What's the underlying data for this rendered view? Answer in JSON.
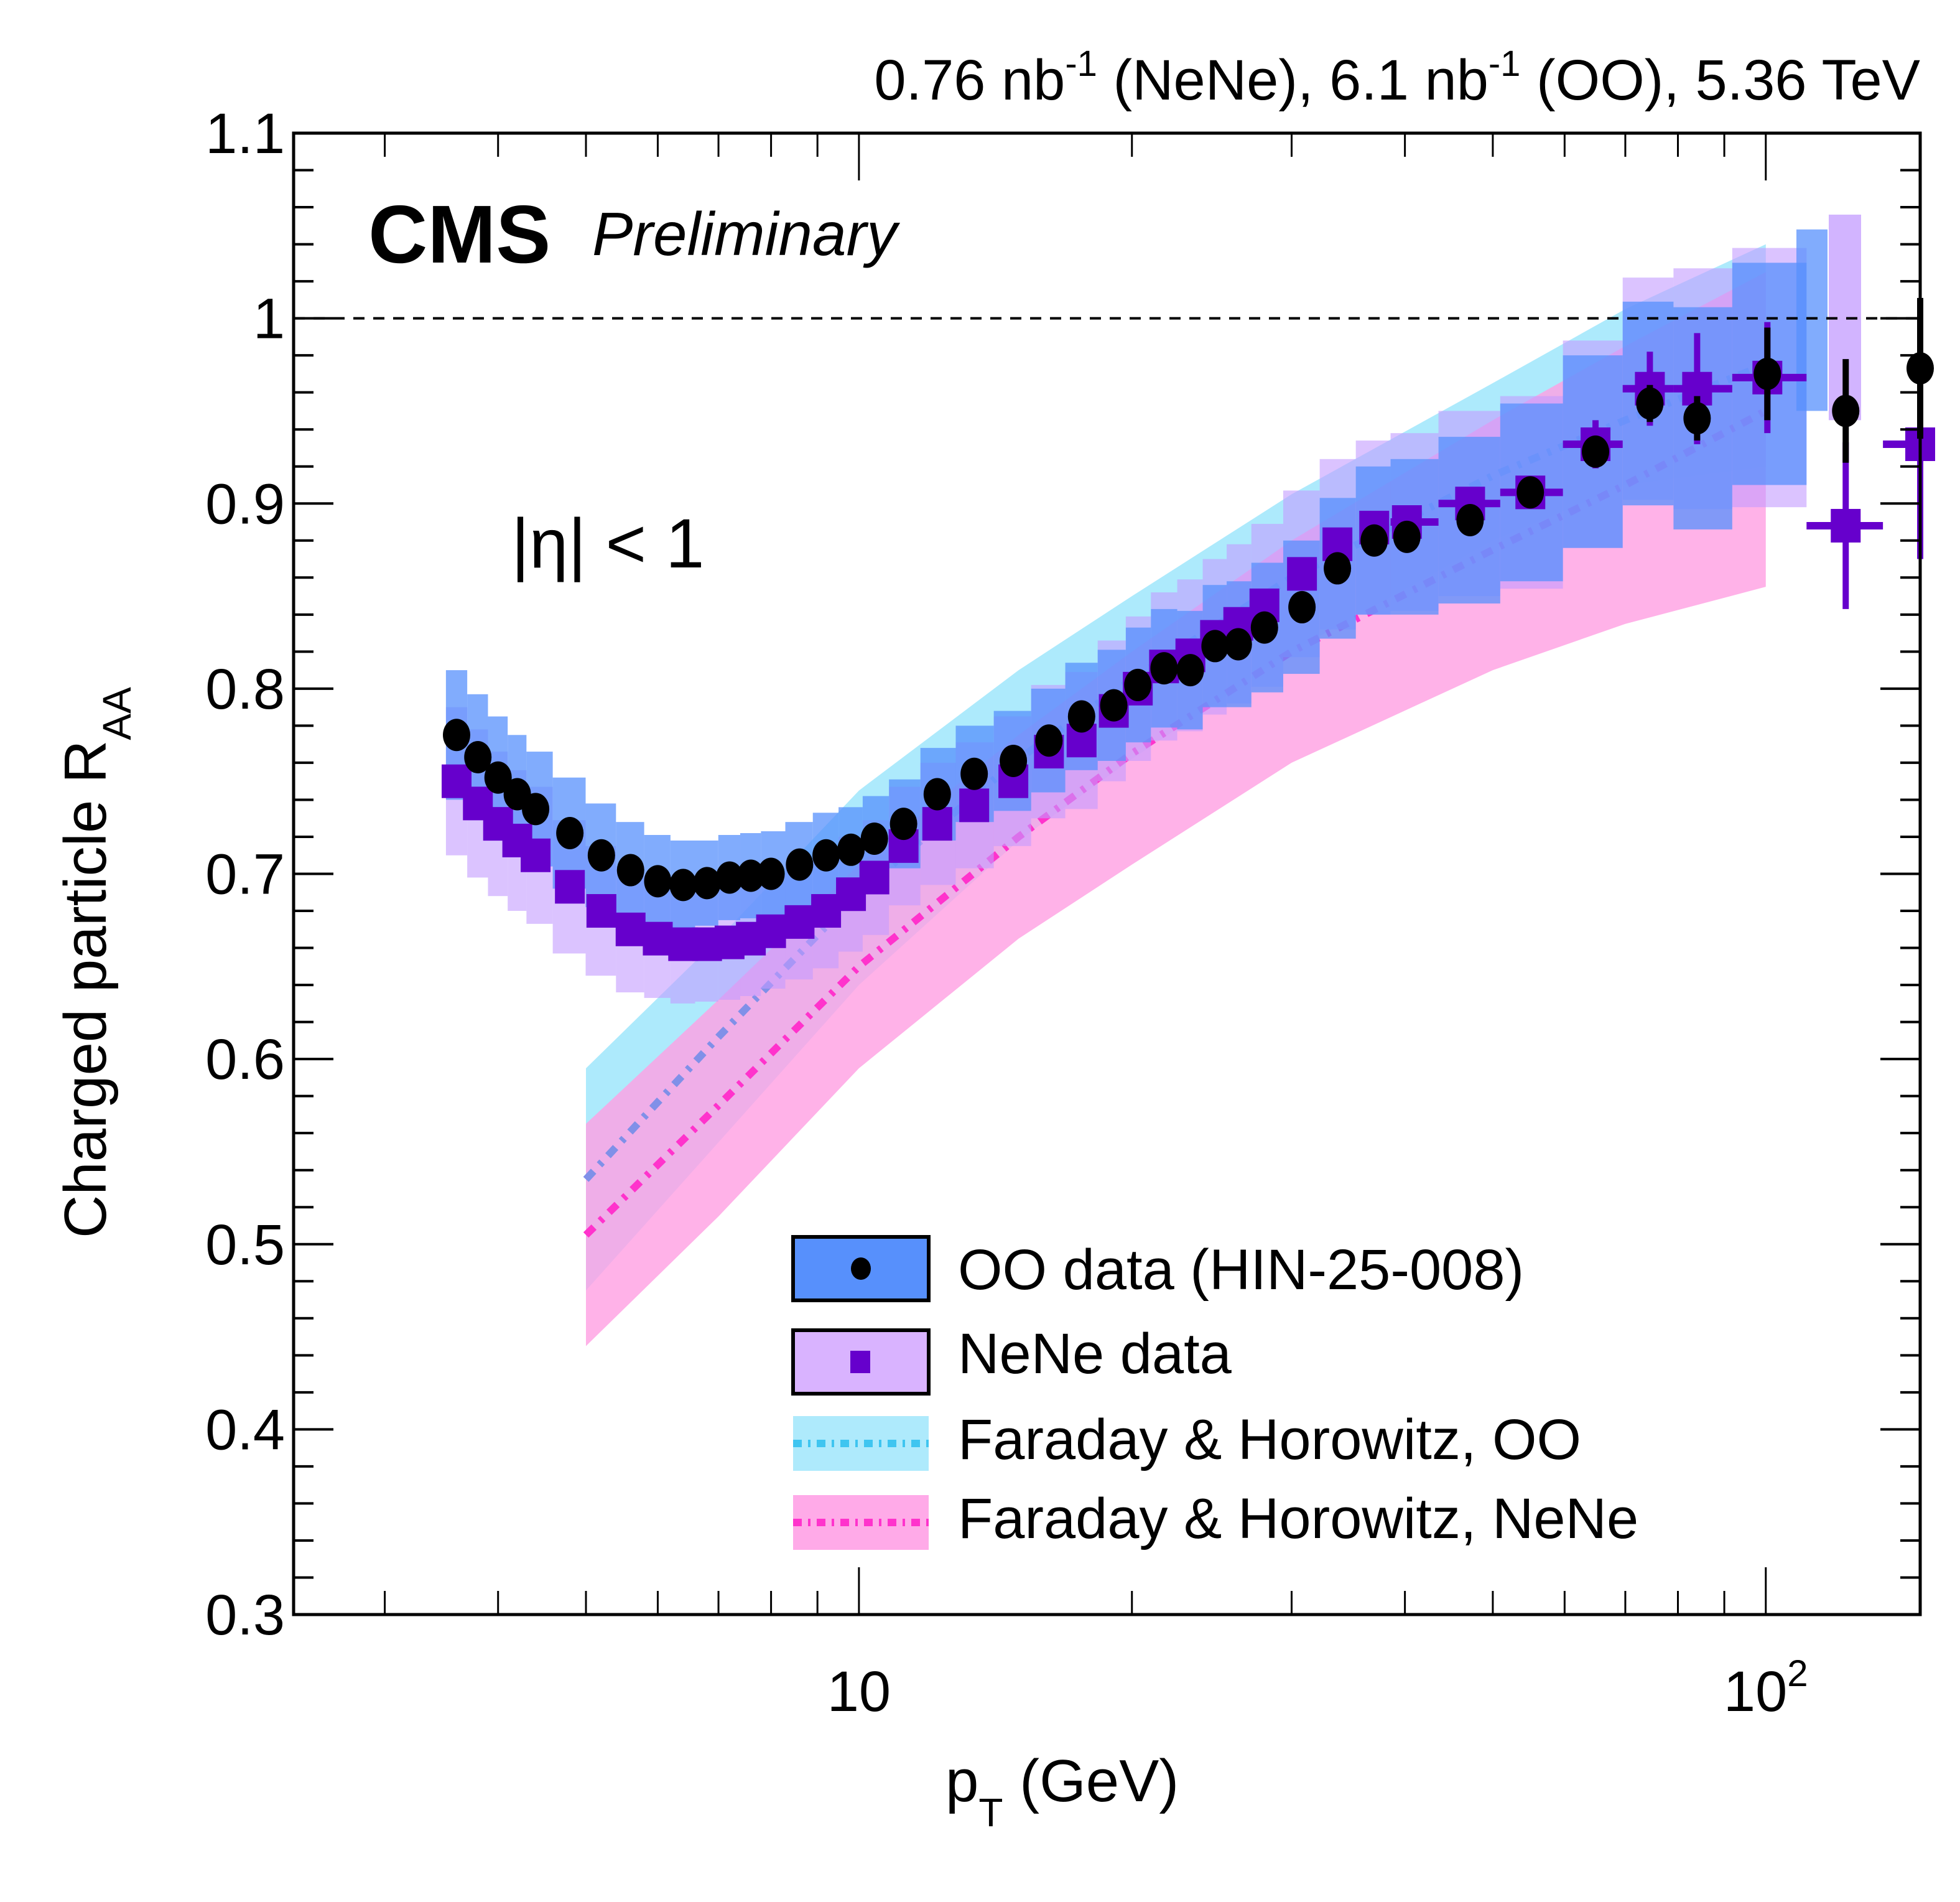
{
  "header": {
    "lumi_text_parts": [
      "0.76 nb",
      "-1",
      " (NeNe), 6.1 nb",
      "-1",
      " (OO), 5.36 TeV"
    ],
    "experiment": "CMS",
    "status": "Preliminary",
    "selection_label": "|η| < 1"
  },
  "chart_data": {
    "type": "scatter",
    "title": "",
    "xlabel": "p_T (GeV)",
    "xlabel_main": "p",
    "xlabel_sub": "T",
    "xlabel_unit": " (GeV)",
    "ylabel": "Charged particle R_AA",
    "ylabel_main": "Charged particle R",
    "ylabel_sub": "AA",
    "xscale": "log",
    "xlim": [
      2.38,
      148
    ],
    "ylim": [
      0.3,
      1.1
    ],
    "x_ticks": [
      {
        "value": 10,
        "label": "10"
      },
      {
        "value": 100,
        "label": "10",
        "sup": "2"
      }
    ],
    "y_ticks": [
      {
        "value": 0.3,
        "label": "0.3"
      },
      {
        "value": 0.4,
        "label": "0.4"
      },
      {
        "value": 0.5,
        "label": "0.5"
      },
      {
        "value": 0.6,
        "label": "0.6"
      },
      {
        "value": 0.7,
        "label": "0.7"
      },
      {
        "value": 0.8,
        "label": "0.8"
      },
      {
        "value": 0.9,
        "label": "0.9"
      },
      {
        "value": 1.0,
        "label": "1"
      },
      {
        "value": 1.1,
        "label": "1.1"
      }
    ],
    "reference_line": 1.0,
    "legend_position": "bottom-right",
    "colors": {
      "oo_band": "#5790fc",
      "oo_marker": "#000000",
      "nene_band": "#c39bff",
      "nene_marker": "#6600cc",
      "fh_oo_band": "#9fe6fb",
      "fh_oo_line": "#3fc5f0",
      "fh_nene_band": "#ff9fe2",
      "fh_nene_line": "#ff33cc"
    },
    "series": [
      {
        "name": "OO data (HIN-25-008)",
        "marker": "circle",
        "x": [
          3.6,
          3.8,
          4.0,
          4.2,
          4.4,
          4.8,
          5.2,
          5.6,
          6.0,
          6.4,
          6.8,
          7.2,
          7.6,
          8.0,
          8.6,
          9.2,
          9.8,
          10.4,
          11.2,
          12.2,
          13.4,
          14.8,
          16.2,
          17.6,
          19.1,
          20.3,
          21.7,
          23.2,
          24.7,
          26.2,
          28.0,
          30.8,
          33.7,
          37.0,
          40.2,
          47.2,
          55.0,
          64.9,
          74.5,
          84.0,
          100.4,
          122.5,
          148.0
        ],
        "y": [
          0.775,
          0.763,
          0.752,
          0.743,
          0.735,
          0.722,
          0.71,
          0.702,
          0.696,
          0.694,
          0.695,
          0.698,
          0.699,
          0.7,
          0.705,
          0.71,
          0.713,
          0.719,
          0.727,
          0.743,
          0.754,
          0.761,
          0.772,
          0.785,
          0.791,
          0.802,
          0.811,
          0.81,
          0.823,
          0.824,
          0.833,
          0.844,
          0.865,
          0.88,
          0.882,
          0.891,
          0.906,
          0.928,
          0.954,
          0.946,
          0.97,
          0.95,
          0.973
        ],
        "syst": [
          0.035,
          0.034,
          0.033,
          0.032,
          0.031,
          0.03,
          0.028,
          0.026,
          0.025,
          0.024,
          0.023,
          0.023,
          0.023,
          0.023,
          0.023,
          0.023,
          0.023,
          0.023,
          0.024,
          0.025,
          0.026,
          0.027,
          0.028,
          0.029,
          0.03,
          0.031,
          0.032,
          0.032,
          0.033,
          0.034,
          0.035,
          0.036,
          0.038,
          0.04,
          0.042,
          0.045,
          0.048,
          0.052,
          0.055,
          0.06,
          0.06,
          0.065,
          0.065
        ],
        "stat": [
          0.0,
          0.0,
          0.0,
          0.0,
          0.0,
          0.0,
          0.0,
          0.0,
          0.0,
          0.0,
          0.0,
          0.0,
          0.0,
          0.0,
          0.0,
          0.0,
          0.0,
          0.0,
          0.0,
          0.0,
          0.0,
          0.0,
          0.0,
          0.0,
          0.0,
          0.0,
          0.0,
          0.0,
          0.0,
          0.0,
          0.0,
          0.0,
          0.0,
          0.0,
          0.0,
          0.0,
          0.0,
          0.0,
          0.01,
          0.012,
          0.025,
          0.028,
          0.038
        ]
      },
      {
        "name": "NeNe data",
        "marker": "square",
        "x": [
          3.6,
          3.8,
          4.0,
          4.2,
          4.4,
          4.8,
          5.2,
          5.6,
          6.0,
          6.4,
          6.8,
          7.2,
          7.6,
          8.0,
          8.6,
          9.2,
          9.8,
          10.4,
          11.2,
          12.2,
          13.4,
          14.8,
          16.2,
          17.6,
          19.1,
          20.3,
          21.7,
          23.2,
          24.7,
          26.2,
          28.0,
          30.8,
          33.7,
          37.0,
          40.2,
          47.2,
          55.0,
          64.9,
          74.5,
          84.0,
          100.4,
          122.5,
          148.0
        ],
        "y": [
          0.75,
          0.738,
          0.727,
          0.718,
          0.71,
          0.693,
          0.68,
          0.67,
          0.665,
          0.662,
          0.662,
          0.663,
          0.665,
          0.669,
          0.674,
          0.68,
          0.689,
          0.698,
          0.715,
          0.727,
          0.737,
          0.75,
          0.766,
          0.772,
          0.788,
          0.8,
          0.812,
          0.818,
          0.828,
          0.835,
          0.845,
          0.862,
          0.878,
          0.887,
          0.89,
          0.9,
          0.906,
          0.932,
          0.962,
          0.962,
          0.968,
          0.888,
          0.932
        ],
        "syst": [
          0.04,
          0.04,
          0.039,
          0.038,
          0.037,
          0.036,
          0.035,
          0.034,
          0.032,
          0.032,
          0.031,
          0.031,
          0.031,
          0.031,
          0.031,
          0.031,
          0.031,
          0.031,
          0.032,
          0.033,
          0.034,
          0.035,
          0.036,
          0.037,
          0.038,
          0.039,
          0.04,
          0.041,
          0.042,
          0.043,
          0.044,
          0.045,
          0.046,
          0.047,
          0.048,
          0.05,
          0.052,
          0.056,
          0.06,
          0.065,
          0.07,
          0.065,
          0.07
        ],
        "stat": [
          0.0,
          0.0,
          0.0,
          0.0,
          0.0,
          0.0,
          0.0,
          0.0,
          0.0,
          0.0,
          0.0,
          0.0,
          0.0,
          0.0,
          0.0,
          0.0,
          0.0,
          0.0,
          0.0,
          0.0,
          0.0,
          0.0,
          0.0,
          0.0,
          0.0,
          0.0,
          0.0,
          0.0,
          0.0,
          0.0,
          0.0,
          0.0,
          0.0,
          0.0,
          0.004,
          0.006,
          0.008,
          0.013,
          0.02,
          0.03,
          0.03,
          0.045,
          0.062
        ]
      }
    ],
    "norm_uncertainty": [
      {
        "name": "OO normalization",
        "center": 1.0,
        "low": 0.95,
        "high": 1.048
      },
      {
        "name": "NeNe normalization",
        "center": 1.0,
        "low": 0.945,
        "high": 1.056
      }
    ],
    "theory": [
      {
        "name": "Faraday & Horowitz, OO",
        "x": [
          5,
          7,
          10,
          15,
          20,
          30,
          50,
          70,
          100
        ],
        "y": [
          0.535,
          0.612,
          0.69,
          0.762,
          0.805,
          0.86,
          0.915,
          0.945,
          0.975
        ],
        "low": [
          0.475,
          0.555,
          0.64,
          0.718,
          0.762,
          0.82,
          0.88,
          0.91,
          0.92
        ],
        "high": [
          0.595,
          0.665,
          0.745,
          0.81,
          0.85,
          0.905,
          0.965,
          1.005,
          1.04
        ]
      },
      {
        "name": "Faraday & Horowitz, NeNe",
        "x": [
          5,
          7,
          10,
          15,
          20,
          30,
          50,
          70,
          100
        ],
        "y": [
          0.505,
          0.575,
          0.65,
          0.72,
          0.765,
          0.82,
          0.875,
          0.91,
          0.95
        ],
        "low": [
          0.445,
          0.515,
          0.595,
          0.665,
          0.705,
          0.76,
          0.81,
          0.835,
          0.855
        ],
        "high": [
          0.565,
          0.632,
          0.705,
          0.775,
          0.82,
          0.88,
          0.945,
          0.985,
          1.025
        ]
      }
    ],
    "legend": [
      {
        "label": "OO data (HIN-25-008)",
        "kind": "oo"
      },
      {
        "label": "NeNe data",
        "kind": "nene"
      },
      {
        "label": "Faraday & Horowitz, OO",
        "kind": "fh_oo"
      },
      {
        "label": "Faraday & Horowitz, NeNe",
        "kind": "fh_nene"
      }
    ]
  }
}
